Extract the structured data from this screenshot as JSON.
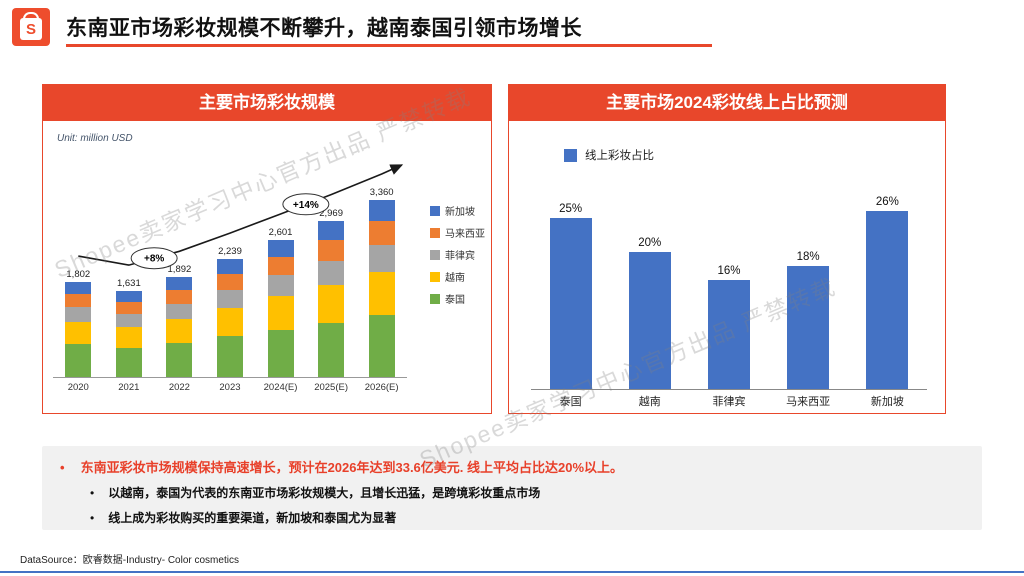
{
  "page": {
    "title": "东南亚市场彩妆规模不断攀升，越南泰国引领市场增长",
    "logo_letter": "S",
    "watermark": "Shopee卖家学习中心官方出品 严禁转载",
    "footer": "DataSource：欧睿数据-Industry- Color cosmetics"
  },
  "colors": {
    "accent_red": "#E8472B",
    "logo_orange": "#EE4D2D",
    "note_red": "#E8402A",
    "online_bar_blue": "#4472C4",
    "bottom_line_blue": "#4472C4"
  },
  "left_panel": {
    "header": "主要市场彩妆规模",
    "unit_note": "Unit: million USD"
  },
  "right_panel": {
    "header": "主要市场2024彩妆线上占比预测"
  },
  "notes": {
    "main": "东南亚彩妆市场规模保持高速增长，预计在2026年达到33.6亿美元. 线上平均占比达20%以上。",
    "sub": [
      "以越南，泰国为代表的东南亚市场彩妆规模大，且增长迅猛，是跨境彩妆重点市场",
      "线上成为彩妆购买的重要渠道，新加坡和泰国尤为显著"
    ]
  },
  "chart_data": [
    {
      "type": "bar",
      "stacked": true,
      "title": "主要市场彩妆规模",
      "unit": "million USD",
      "categories": [
        "2020",
        "2021",
        "2022",
        "2023",
        "2024(E)",
        "2025(E)",
        "2026(E)"
      ],
      "totals": [
        1802,
        1631,
        1892,
        2239,
        2601,
        2969,
        3360
      ],
      "total_labels": [
        "1,802",
        "1,631",
        "1,892",
        "2,239",
        "2,601",
        "2,969",
        "3,360"
      ],
      "series": [
        {
          "name": "泰国",
          "color": "#70AD47",
          "values": [
            620,
            560,
            650,
            780,
            900,
            1030,
            1170
          ]
        },
        {
          "name": "越南",
          "color": "#FFC000",
          "values": [
            430,
            390,
            450,
            540,
            630,
            720,
            820
          ]
        },
        {
          "name": "菲律宾",
          "color": "#A5A5A5",
          "values": [
            280,
            250,
            290,
            340,
            400,
            460,
            520
          ]
        },
        {
          "name": "马来西亚",
          "color": "#ED7D31",
          "values": [
            240,
            220,
            255,
            300,
            350,
            400,
            450
          ]
        },
        {
          "name": "新加坡",
          "color": "#4472C4",
          "values": [
            232,
            211,
            247,
            279,
            321,
            359,
            400
          ]
        }
      ],
      "annotations": [
        "+8%",
        "+14%"
      ],
      "ylim": [
        0,
        3600
      ],
      "legend_position": "right"
    },
    {
      "type": "bar",
      "title": "主要市场2024彩妆线上占比预测",
      "legend": "线上彩妆占比",
      "categories": [
        "泰国",
        "越南",
        "菲律宾",
        "马来西亚",
        "新加坡"
      ],
      "values": [
        25,
        20,
        16,
        18,
        26
      ],
      "value_labels": [
        "25%",
        "20%",
        "16%",
        "18%",
        "26%"
      ],
      "color": "#4472C4",
      "ylim": [
        0,
        30
      ],
      "legend_position": "top"
    }
  ]
}
